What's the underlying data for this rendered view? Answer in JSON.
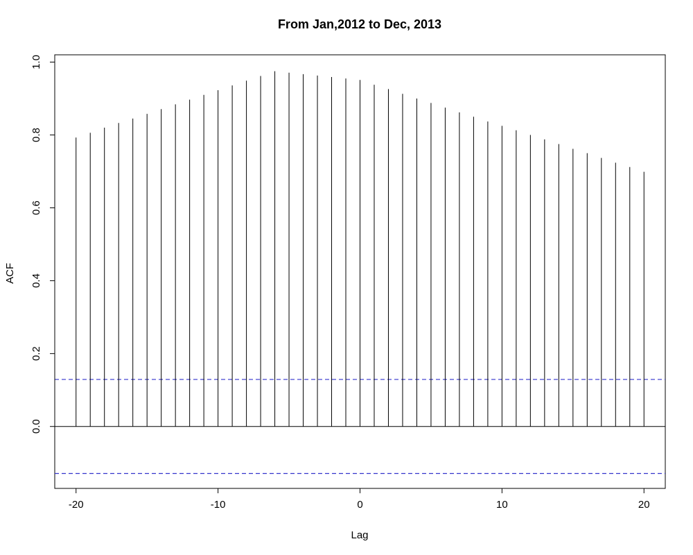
{
  "chart_data": {
    "type": "bar",
    "title": "From Jan,2012 to Dec, 2013",
    "xlabel": "Lag",
    "ylabel": "ACF",
    "xlim": [
      -21.5,
      21.5
    ],
    "ylim": [
      -0.17,
      1.02
    ],
    "x_ticks": [
      -20,
      -10,
      0,
      10,
      20
    ],
    "x_tick_labels": [
      "-20",
      "-10",
      "0",
      "10",
      "20"
    ],
    "y_ticks": [
      0.0,
      0.2,
      0.4,
      0.6,
      0.8,
      1.0
    ],
    "y_tick_labels": [
      "0.0",
      "0.2",
      "0.4",
      "0.6",
      "0.8",
      "1.0"
    ],
    "x": [
      -20,
      -19,
      -18,
      -17,
      -16,
      -15,
      -14,
      -13,
      -12,
      -11,
      -10,
      -9,
      -8,
      -7,
      -6,
      -5,
      -4,
      -3,
      -2,
      -1,
      0,
      1,
      2,
      3,
      4,
      5,
      6,
      7,
      8,
      9,
      10,
      11,
      12,
      13,
      14,
      15,
      16,
      17,
      18,
      19,
      20
    ],
    "values": [
      0.793,
      0.806,
      0.82,
      0.833,
      0.845,
      0.858,
      0.871,
      0.884,
      0.897,
      0.91,
      0.923,
      0.936,
      0.949,
      0.962,
      0.975,
      0.971,
      0.967,
      0.963,
      0.959,
      0.955,
      0.951,
      0.938,
      0.926,
      0.913,
      0.9,
      0.888,
      0.875,
      0.862,
      0.85,
      0.837,
      0.825,
      0.813,
      0.8,
      0.788,
      0.775,
      0.762,
      0.75,
      0.737,
      0.724,
      0.712,
      0.699
    ],
    "confidence_bounds": [
      0.129,
      -0.129
    ],
    "zero_line": 0.0,
    "colors": {
      "bars": "#000000",
      "confidence": "#3333cc",
      "axis": "#000000"
    },
    "grid": false,
    "legend": "none"
  }
}
